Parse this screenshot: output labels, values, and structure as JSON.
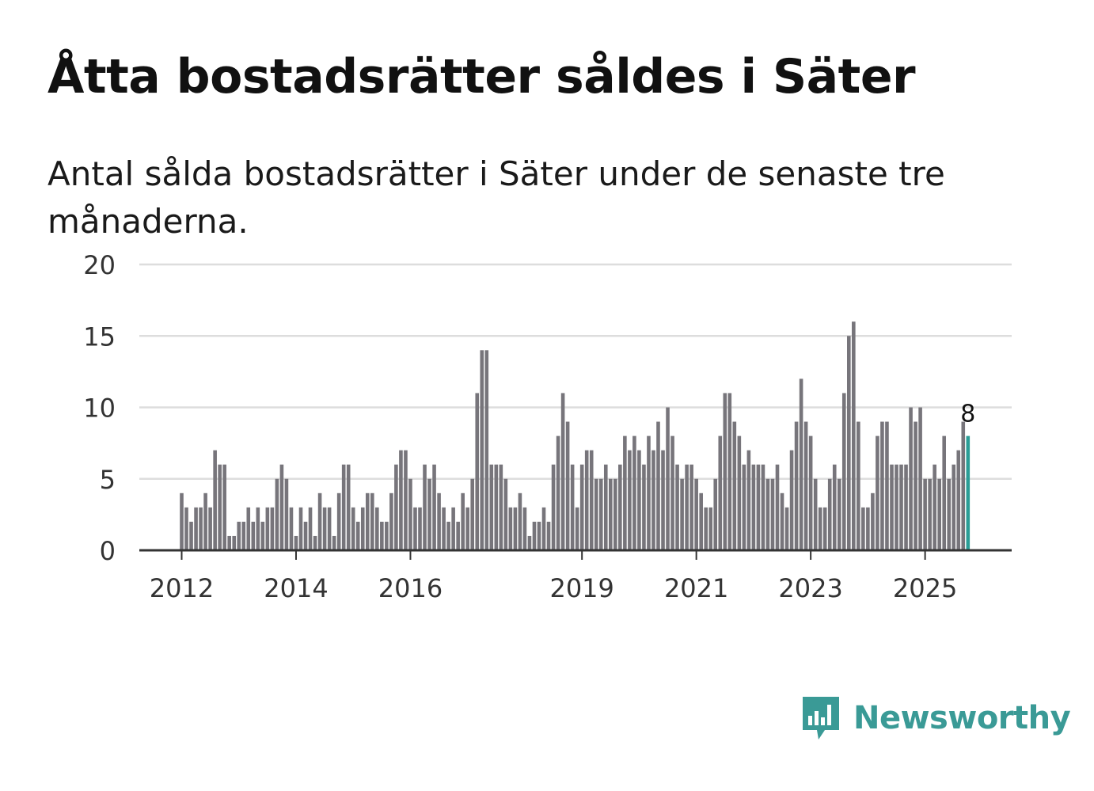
{
  "title": "Åtta bostadsrätter såldes i Säter",
  "subtitle": "Antal sålda bostadsrätter i Säter under de senaste tre månaderna.",
  "brand": {
    "name": "Newsworthy",
    "color": "#3a9a96",
    "icon": "newsworthy-chart-icon"
  },
  "chart_data": {
    "type": "bar",
    "ylim": [
      0,
      20
    ],
    "yticks": [
      "0",
      "5",
      "10",
      "15",
      "20"
    ],
    "xticks": [
      {
        "label": "2012",
        "index": 0
      },
      {
        "label": "2014",
        "index": 24
      },
      {
        "label": "2016",
        "index": 48
      },
      {
        "label": "2019",
        "index": 84
      },
      {
        "label": "2021",
        "index": 108
      },
      {
        "label": "2023",
        "index": 132
      },
      {
        "label": "2025",
        "index": 156
      }
    ],
    "bar_color": "#77757b",
    "highlight_color": "#2a9d96",
    "last_value_label": "8",
    "start": "2012-01",
    "values": [
      4,
      3,
      2,
      3,
      3,
      4,
      3,
      7,
      6,
      6,
      1,
      1,
      2,
      2,
      3,
      2,
      3,
      2,
      3,
      3,
      5,
      6,
      5,
      3,
      1,
      3,
      2,
      3,
      1,
      4,
      3,
      3,
      1,
      4,
      6,
      6,
      3,
      2,
      3,
      4,
      4,
      3,
      2,
      2,
      4,
      6,
      7,
      7,
      5,
      3,
      3,
      6,
      5,
      6,
      4,
      3,
      2,
      3,
      2,
      4,
      3,
      5,
      11,
      14,
      14,
      6,
      6,
      6,
      5,
      3,
      3,
      4,
      3,
      1,
      2,
      2,
      3,
      2,
      6,
      8,
      11,
      9,
      6,
      3,
      6,
      7,
      7,
      5,
      5,
      6,
      5,
      5,
      6,
      8,
      7,
      8,
      7,
      6,
      8,
      7,
      9,
      7,
      10,
      8,
      6,
      5,
      6,
      6,
      5,
      4,
      3,
      3,
      5,
      8,
      11,
      11,
      9,
      8,
      6,
      7,
      6,
      6,
      6,
      5,
      5,
      6,
      4,
      3,
      7,
      9,
      12,
      9,
      8,
      5,
      3,
      3,
      5,
      6,
      5,
      11,
      15,
      16,
      9,
      3,
      3,
      4,
      8,
      9,
      9,
      6,
      6,
      6,
      6,
      10,
      9,
      10,
      5,
      5,
      6,
      5,
      8,
      5,
      6,
      7,
      9,
      8
    ]
  }
}
